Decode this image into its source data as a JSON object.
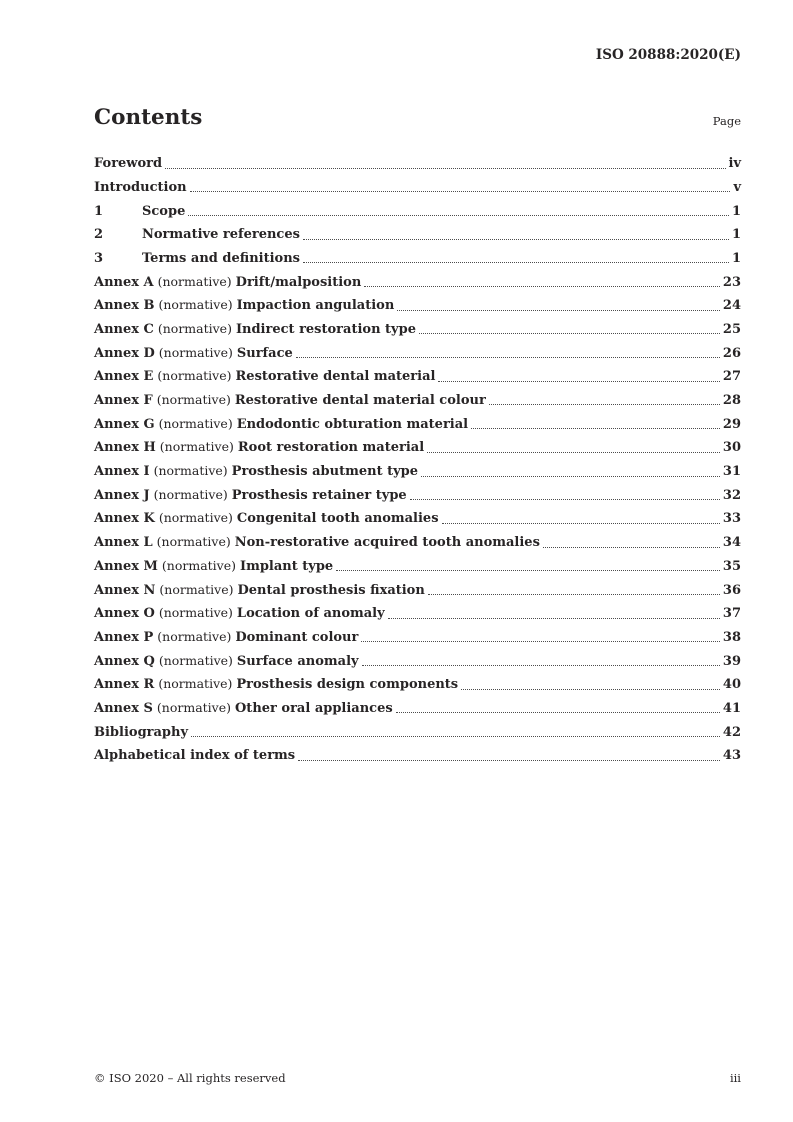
{
  "header": {
    "doc_ref": "ISO 20888:2020(E)"
  },
  "contents": {
    "title": "Contents",
    "page_label": "Page",
    "entries": [
      {
        "parts": [
          {
            "text": "Foreword",
            "bold": true
          }
        ],
        "page": "iv"
      },
      {
        "parts": [
          {
            "text": "Introduction",
            "bold": true
          }
        ],
        "page": "v"
      },
      {
        "num": "1",
        "parts": [
          {
            "text": "Scope",
            "bold": true
          }
        ],
        "page": "1"
      },
      {
        "num": "2",
        "parts": [
          {
            "text": "Normative references",
            "bold": true
          }
        ],
        "page": "1"
      },
      {
        "num": "3",
        "parts": [
          {
            "text": "Terms and definitions",
            "bold": true
          }
        ],
        "page": "1"
      },
      {
        "parts": [
          {
            "text": "Annex A",
            "bold": true
          },
          {
            "text": " (normative) ",
            "bold": false
          },
          {
            "text": "Drift/malposition",
            "bold": true
          }
        ],
        "page": "23"
      },
      {
        "parts": [
          {
            "text": "Annex B",
            "bold": true
          },
          {
            "text": " (normative) ",
            "bold": false
          },
          {
            "text": "Impaction angulation",
            "bold": true
          }
        ],
        "page": "24"
      },
      {
        "parts": [
          {
            "text": "Annex C",
            "bold": true
          },
          {
            "text": " (normative) ",
            "bold": false
          },
          {
            "text": "Indirect restoration type",
            "bold": true
          }
        ],
        "page": "25"
      },
      {
        "parts": [
          {
            "text": "Annex D",
            "bold": true
          },
          {
            "text": " (normative) ",
            "bold": false
          },
          {
            "text": "Surface",
            "bold": true
          }
        ],
        "page": "26"
      },
      {
        "parts": [
          {
            "text": "Annex E",
            "bold": true
          },
          {
            "text": " (normative) ",
            "bold": false
          },
          {
            "text": "Restorative dental material",
            "bold": true
          }
        ],
        "page": "27"
      },
      {
        "parts": [
          {
            "text": "Annex F",
            "bold": true
          },
          {
            "text": " (normative) ",
            "bold": false
          },
          {
            "text": "Restorative dental material colour",
            "bold": true
          }
        ],
        "page": "28"
      },
      {
        "parts": [
          {
            "text": "Annex G",
            "bold": true
          },
          {
            "text": " (normative) ",
            "bold": false
          },
          {
            "text": "Endodontic obturation material",
            "bold": true
          }
        ],
        "page": "29"
      },
      {
        "parts": [
          {
            "text": "Annex H",
            "bold": true
          },
          {
            "text": " (normative) ",
            "bold": false
          },
          {
            "text": "Root restoration material",
            "bold": true
          }
        ],
        "page": "30"
      },
      {
        "parts": [
          {
            "text": "Annex I",
            "bold": true
          },
          {
            "text": " (normative) ",
            "bold": false
          },
          {
            "text": "Prosthesis abutment type",
            "bold": true
          }
        ],
        "page": "31"
      },
      {
        "parts": [
          {
            "text": "Annex J",
            "bold": true
          },
          {
            "text": " (normative) ",
            "bold": false
          },
          {
            "text": "Prosthesis retainer type",
            "bold": true
          }
        ],
        "page": "32"
      },
      {
        "parts": [
          {
            "text": "Annex K",
            "bold": true
          },
          {
            "text": " (normative) ",
            "bold": false
          },
          {
            "text": "Congenital tooth anomalies",
            "bold": true
          }
        ],
        "page": "33"
      },
      {
        "parts": [
          {
            "text": "Annex L",
            "bold": true
          },
          {
            "text": " (normative) ",
            "bold": false
          },
          {
            "text": "Non-restorative acquired tooth anomalies",
            "bold": true
          }
        ],
        "page": "34"
      },
      {
        "parts": [
          {
            "text": "Annex M",
            "bold": true
          },
          {
            "text": " (normative) ",
            "bold": false
          },
          {
            "text": "Implant type",
            "bold": true
          }
        ],
        "page": "35"
      },
      {
        "parts": [
          {
            "text": "Annex N",
            "bold": true
          },
          {
            "text": " (normative) ",
            "bold": false
          },
          {
            "text": "Dental prosthesis fixation",
            "bold": true
          }
        ],
        "page": "36"
      },
      {
        "parts": [
          {
            "text": "Annex O",
            "bold": true
          },
          {
            "text": " (normative) ",
            "bold": false
          },
          {
            "text": "Location of anomaly",
            "bold": true
          }
        ],
        "page": "37"
      },
      {
        "parts": [
          {
            "text": "Annex P",
            "bold": true
          },
          {
            "text": " (normative) ",
            "bold": false
          },
          {
            "text": "Dominant colour",
            "bold": true
          }
        ],
        "page": "38"
      },
      {
        "parts": [
          {
            "text": "Annex Q",
            "bold": true
          },
          {
            "text": " (normative) ",
            "bold": false
          },
          {
            "text": "Surface anomaly",
            "bold": true
          }
        ],
        "page": "39"
      },
      {
        "parts": [
          {
            "text": "Annex R",
            "bold": true
          },
          {
            "text": " (normative) ",
            "bold": false
          },
          {
            "text": "Prosthesis design components",
            "bold": true
          }
        ],
        "page": "40"
      },
      {
        "parts": [
          {
            "text": "Annex S",
            "bold": true
          },
          {
            "text": " (normative) ",
            "bold": false
          },
          {
            "text": "Other oral appliances",
            "bold": true
          }
        ],
        "page": "41"
      },
      {
        "parts": [
          {
            "text": "Bibliography",
            "bold": true
          }
        ],
        "page": "42"
      },
      {
        "parts": [
          {
            "text": "Alphabetical index of terms",
            "bold": true
          }
        ],
        "page": "43"
      }
    ]
  },
  "footer": {
    "copyright": "© ISO 2020 – All rights reserved",
    "page_number": "iii"
  }
}
